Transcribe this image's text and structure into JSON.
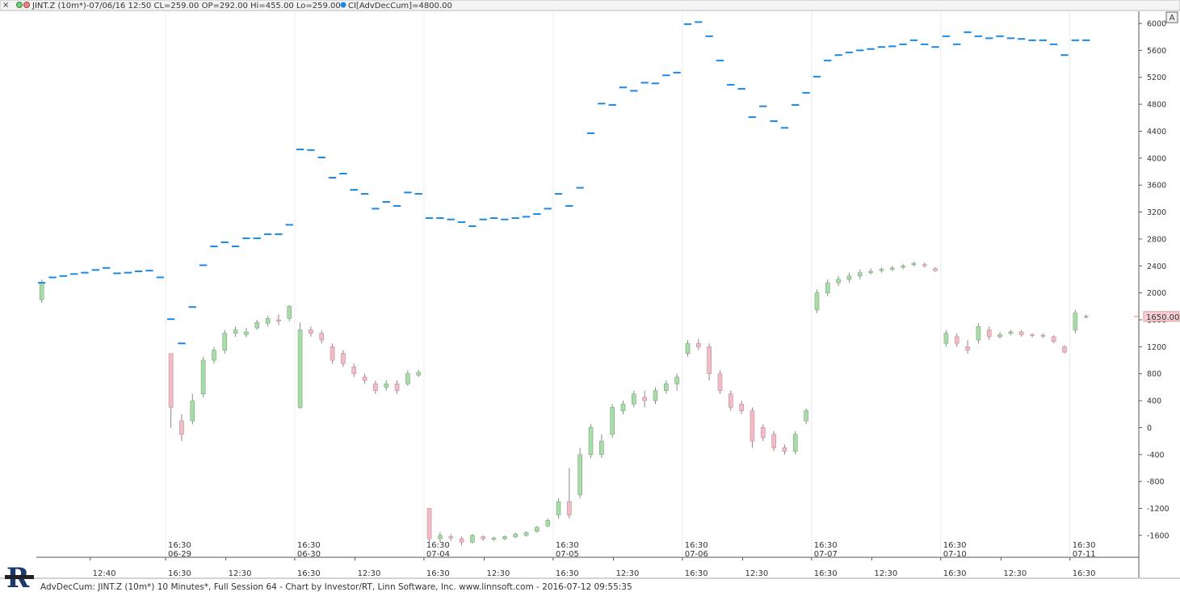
{
  "header": {
    "symbol_text": "JINT.Z (10m*)-07/06/16 12:50 CL=259.00 OP=292.00 Hi=455.00 Lo=259.00",
    "indicator_text": "CI[AdvDecCum]=4800.00",
    "button": "A"
  },
  "footer": "AdvDecCum: JINT.Z (10m*) 10 Minutes*, Full Session 64 - Chart by Investor/RT, Linn Software, Inc. www.linnsoft.com - 2016-07-12 09:55:35",
  "chart_data": {
    "type": "candlestick",
    "xlim": [
      0,
      102.4
    ],
    "ylim": [
      -1925,
      6180
    ],
    "yticks": [
      6000,
      5600,
      5200,
      4800,
      4400,
      4000,
      3600,
      3200,
      2800,
      2400,
      2000,
      1600,
      1200,
      800,
      400,
      0,
      -400,
      -800,
      -1200,
      -1600
    ],
    "xticks": [
      {
        "value": 5,
        "label": "12:40"
      },
      {
        "value": 12,
        "label": "16:30"
      },
      {
        "value": 17.6,
        "label": "12:30"
      },
      {
        "value": 24,
        "label": "16:30"
      },
      {
        "value": 29.6,
        "label": "12:30"
      },
      {
        "value": 36,
        "label": "16:30"
      },
      {
        "value": 41.6,
        "label": "12:30"
      },
      {
        "value": 48,
        "label": "16:30"
      },
      {
        "value": 53.6,
        "label": "12:30"
      },
      {
        "value": 60,
        "label": "16:30"
      },
      {
        "value": 65.6,
        "label": "12:30"
      },
      {
        "value": 72,
        "label": "16:30"
      },
      {
        "value": 77.6,
        "label": "12:30"
      },
      {
        "value": 84,
        "label": "16:30"
      },
      {
        "value": 89.6,
        "label": "12:30"
      },
      {
        "value": 96,
        "label": "16:30"
      }
    ],
    "sessions": [
      {
        "value": 12,
        "time": "16:30",
        "date": "06-29"
      },
      {
        "value": 24,
        "time": "16:30",
        "date": "06-30"
      },
      {
        "value": 36,
        "time": "16:30",
        "date": "07-04"
      },
      {
        "value": 48,
        "time": "16:30",
        "date": "07-05"
      },
      {
        "value": 60,
        "time": "16:30",
        "date": "07-06"
      },
      {
        "value": 72,
        "time": "16:30",
        "date": "07-07"
      },
      {
        "value": 84,
        "time": "16:30",
        "date": "07-10"
      },
      {
        "value": 96,
        "time": "16:30",
        "date": "07-11"
      }
    ],
    "up_color": "#a8dca8",
    "down_color": "#f2bcc6",
    "open": [
      1900,
      null,
      null,
      null,
      null,
      null,
      null,
      null,
      null,
      null,
      null,
      null,
      1100,
      100,
      100,
      500,
      1000,
      1150,
      1400,
      1380,
      1480,
      1550,
      1600,
      1620,
      300,
      1450,
      1400,
      1200,
      1100,
      900,
      750,
      650,
      600,
      650,
      650,
      780,
      -1200,
      -1650,
      -1620,
      -1650,
      -1700,
      -1620,
      -1660,
      -1650,
      -1620,
      -1600,
      -1540,
      -1460,
      -1300,
      -1100,
      -1000,
      -400,
      -400,
      -100,
      250,
      350,
      450,
      400,
      550,
      650,
      1100,
      1250,
      1200,
      800,
      500,
      350,
      250,
      0,
      -100,
      -300,
      -350,
      100,
      1750,
      2000,
      2150,
      2200,
      2250,
      2300,
      2330,
      2350,
      2380,
      2420,
      2420,
      2360,
      1250,
      1350,
      1200,
      1300,
      1450,
      1350,
      1400,
      1420,
      1380,
      1370,
      1350,
      1200,
      1450,
      1650
    ],
    "high": [
      2200,
      null,
      null,
      null,
      null,
      null,
      null,
      null,
      null,
      null,
      null,
      null,
      1100,
      200,
      500,
      1050,
      1200,
      1450,
      1500,
      1480,
      1600,
      1660,
      1680,
      1820,
      1560,
      1500,
      1450,
      1250,
      1150,
      950,
      800,
      700,
      700,
      700,
      850,
      860,
      -1200,
      -1550,
      -1580,
      -1620,
      -1580,
      -1600,
      -1620,
      -1600,
      -1560,
      -1540,
      -1460,
      -1350,
      -1050,
      -600,
      -300,
      50,
      -100,
      350,
      400,
      550,
      550,
      600,
      700,
      800,
      1300,
      1320,
      1250,
      850,
      550,
      400,
      300,
      50,
      -50,
      -250,
      -50,
      280,
      2050,
      2200,
      2250,
      2300,
      2350,
      2360,
      2380,
      2400,
      2430,
      2460,
      2450,
      2380,
      1450,
      1400,
      1300,
      1550,
      1500,
      1420,
      1450,
      1450,
      1400,
      1400,
      1370,
      1220,
      1750,
      1680
    ],
    "low": [
      1850,
      null,
      null,
      null,
      null,
      null,
      null,
      null,
      null,
      null,
      null,
      null,
      0,
      -200,
      50,
      450,
      950,
      1100,
      1350,
      1340,
      1450,
      1500,
      1520,
      1580,
      280,
      1350,
      1250,
      950,
      900,
      750,
      650,
      500,
      550,
      500,
      620,
      750,
      -1700,
      -1700,
      -1680,
      -1750,
      -1720,
      -1680,
      -1680,
      -1670,
      -1640,
      -1620,
      -1560,
      -1480,
      -1350,
      -1350,
      -1050,
      -450,
      -450,
      -150,
      200,
      300,
      300,
      350,
      500,
      550,
      1050,
      1150,
      700,
      500,
      250,
      200,
      -300,
      -200,
      -350,
      -400,
      -400,
      50,
      1700,
      1950,
      2100,
      2150,
      2200,
      2270,
      2300,
      2320,
      2350,
      2390,
      2380,
      2310,
      1200,
      1200,
      1100,
      1250,
      1300,
      1320,
      1370,
      1350,
      1340,
      1330,
      1250,
      1100,
      1400,
      1620
    ],
    "close": [
      2150,
      null,
      null,
      null,
      null,
      null,
      null,
      null,
      null,
      null,
      null,
      null,
      300,
      -100,
      400,
      1000,
      1150,
      1400,
      1450,
      1420,
      1560,
      1620,
      1580,
      1800,
      1450,
      1400,
      1300,
      1000,
      950,
      800,
      700,
      550,
      650,
      550,
      800,
      820,
      -1650,
      -1600,
      -1640,
      -1700,
      -1600,
      -1650,
      -1640,
      -1620,
      -1580,
      -1560,
      -1480,
      -1380,
      -1100,
      -1300,
      -400,
      0,
      -200,
      300,
      350,
      500,
      400,
      550,
      650,
      750,
      1250,
      1200,
      800,
      550,
      300,
      250,
      -200,
      -150,
      -300,
      -350,
      -100,
      250,
      2000,
      2150,
      2200,
      2250,
      2300,
      2320,
      2350,
      2370,
      2400,
      2440,
      2400,
      2330,
      1400,
      1250,
      1150,
      1500,
      1350,
      1380,
      1420,
      1380,
      1370,
      1360,
      1280,
      1120,
      1700,
      1650
    ],
    "overlay": {
      "color": "#1e88e5",
      "values": [
        2150,
        2230,
        2250,
        2280,
        2300,
        2340,
        2370,
        2290,
        2300,
        2320,
        2330,
        2230,
        1610,
        1250,
        1790,
        2410,
        2690,
        2750,
        2690,
        2810,
        2810,
        2870,
        2870,
        3010,
        4130,
        4120,
        4010,
        3710,
        3770,
        3530,
        3470,
        3250,
        3350,
        3290,
        3490,
        3470,
        3110,
        3110,
        3090,
        3050,
        2990,
        3090,
        3110,
        3090,
        3110,
        3130,
        3170,
        3250,
        3470,
        3290,
        3560,
        4370,
        4810,
        4790,
        5050,
        5000,
        5120,
        5110,
        5230,
        5270,
        5990,
        6020,
        5810,
        5450,
        5090,
        5030,
        4610,
        4770,
        4550,
        4450,
        4790,
        4970,
        5210,
        5450,
        5530,
        5570,
        5600,
        5620,
        5650,
        5660,
        5690,
        5750,
        5690,
        5650,
        5810,
        5690,
        5870,
        5810,
        5780,
        5810,
        5780,
        5770,
        5750,
        5750,
        5690,
        5530,
        5750,
        5750
      ]
    },
    "last_price": {
      "value": 1650,
      "label": "1650.00"
    }
  }
}
